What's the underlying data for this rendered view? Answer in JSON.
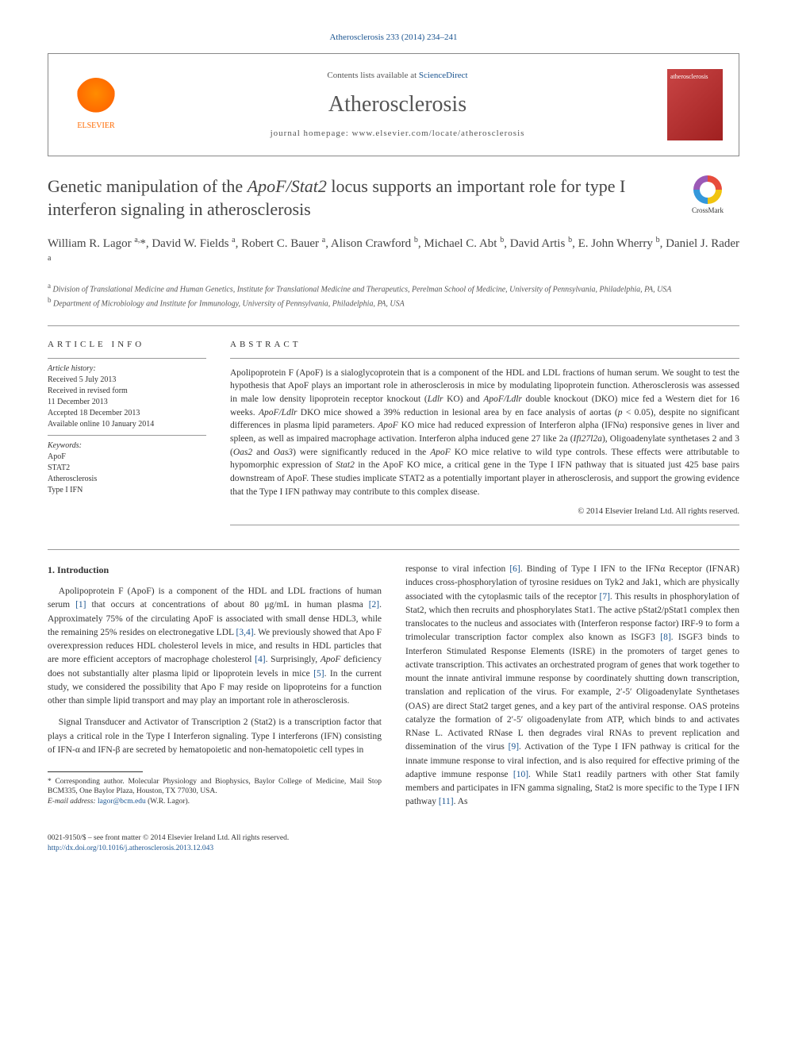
{
  "journal_ref": {
    "name": "Atherosclerosis",
    "vol": "233 (2014) 234–241"
  },
  "header": {
    "contents_prefix": "Contents lists available at ",
    "contents_link": "ScienceDirect",
    "journal": "Atherosclerosis",
    "homepage_prefix": "journal homepage: ",
    "homepage_url": "www.elsevier.com/locate/atherosclerosis",
    "publisher": "ELSEVIER",
    "cover_text": "atherosclerosis"
  },
  "crossmark": "CrossMark",
  "title": "Genetic manipulation of the <em>ApoF/Stat2</em> locus supports an important role for type I interferon signaling in atherosclerosis",
  "authors_html": "William R. Lagor <sup>a,</sup>*, David W. Fields <sup>a</sup>, Robert C. Bauer <sup>a</sup>, Alison Crawford <sup>b</sup>, Michael C. Abt <sup>b</sup>, David Artis <sup>b</sup>, E. John Wherry <sup>b</sup>, Daniel J. Rader <sup>a</sup>",
  "affiliations": [
    {
      "key": "a",
      "text": "Division of Translational Medicine and Human Genetics, Institute for Translational Medicine and Therapeutics, Perelman School of Medicine, University of Pennsylvania, Philadelphia, PA, USA"
    },
    {
      "key": "b",
      "text": "Department of Microbiology and Institute for Immunology, University of Pennsylvania, Philadelphia, PA, USA"
    }
  ],
  "info": {
    "heading": "ARTICLE INFO",
    "history_label": "Article history:",
    "history": [
      "Received 5 July 2013",
      "Received in revised form",
      "11 December 2013",
      "Accepted 18 December 2013",
      "Available online 10 January 2014"
    ],
    "keywords_label": "Keywords:",
    "keywords": [
      "ApoF",
      "STAT2",
      "Atherosclerosis",
      "Type I IFN"
    ]
  },
  "abstract": {
    "heading": "ABSTRACT",
    "text": "Apolipoprotein F (ApoF) is a sialoglycoprotein that is a component of the HDL and LDL fractions of human serum. We sought to test the hypothesis that ApoF plays an important role in atherosclerosis in mice by modulating lipoprotein function. Atherosclerosis was assessed in male low density lipoprotein receptor knockout (<em>Ldlr</em> KO) and <em>ApoF/Ldlr</em> double knockout (DKO) mice fed a Western diet for 16 weeks. <em>ApoF/Ldlr</em> DKO mice showed a 39% reduction in lesional area by en face analysis of aortas (<em>p</em> < 0.05), despite no significant differences in plasma lipid parameters. <em>ApoF</em> KO mice had reduced expression of Interferon alpha (IFNα) responsive genes in liver and spleen, as well as impaired macrophage activation. Interferon alpha induced gene 27 like 2a (<em>Ifi27l2a</em>), Oligoadenylate synthetases 2 and 3 (<em>Oas2</em> and <em>Oas3</em>) were significantly reduced in the <em>ApoF</em> KO mice relative to wild type controls. These effects were attributable to hypomorphic expression of <em>Stat2</em> in the ApoF KO mice, a critical gene in the Type I IFN pathway that is situated just 425 base pairs downstream of ApoF. These studies implicate STAT2 as a potentially important player in atherosclerosis, and support the growing evidence that the Type I IFN pathway may contribute to this complex disease.",
    "copyright": "© 2014 Elsevier Ireland Ltd. All rights reserved."
  },
  "body": {
    "section_num": "1.",
    "section_title": "Introduction",
    "p1": "Apolipoprotein F (ApoF) is a component of the HDL and LDL fractions of human serum [1] that occurs at concentrations of about 80 μg/mL in human plasma [2]. Approximately 75% of the circulating ApoF is associated with small dense HDL3, while the remaining 25% resides on electronegative LDL [3,4]. We previously showed that Apo F overexpression reduces HDL cholesterol levels in mice, and results in HDL particles that are more efficient acceptors of macrophage cholesterol [4]. Surprisingly, <em>ApoF</em> deficiency does not substantially alter plasma lipid or lipoprotein levels in mice [5]. In the current study, we considered the possibility that Apo F may reside on lipoproteins for a function other than simple lipid transport and may play an important role in atherosclerosis.",
    "p2": "Signal Transducer and Activator of Transcription 2 (Stat2) is a transcription factor that plays a critical role in the Type I Interferon signaling. Type I interferons (IFN) consisting of IFN-α and IFN-β are secreted by hematopoietic and non-hematopoietic cell types in",
    "p3": "response to viral infection [6]. Binding of Type I IFN to the IFNα Receptor (IFNAR) induces cross-phosphorylation of tyrosine residues on Tyk2 and Jak1, which are physically associated with the cytoplasmic tails of the receptor [7]. This results in phosphorylation of Stat2, which then recruits and phosphorylates Stat1. The active pStat2/pStat1 complex then translocates to the nucleus and associates with (Interferon response factor) IRF-9 to form a trimolecular transcription factor complex also known as ISGF3 [8]. ISGF3 binds to Interferon Stimulated Response Elements (ISRE) in the promoters of target genes to activate transcription. This activates an orchestrated program of genes that work together to mount the innate antiviral immune response by coordinately shutting down transcription, translation and replication of the virus. For example, 2′-5′ Oligoadenylate Synthetases (OAS) are direct Stat2 target genes, and a key part of the antiviral response. OAS proteins catalyze the formation of 2′-5′ oligoadenylate from ATP, which binds to and activates RNase L. Activated RNase L then degrades viral RNAs to prevent replication and dissemination of the virus [9]. Activation of the Type I IFN pathway is critical for the innate immune response to viral infection, and is also required for effective priming of the adaptive immune response [10]. While Stat1 readily partners with other Stat family members and participates in IFN gamma signaling, Stat2 is more specific to the Type I IFN pathway [11]. As"
  },
  "footnote": {
    "corr": "* Corresponding author. Molecular Physiology and Biophysics, Baylor College of Medicine, Mail Stop BCM335, One Baylor Plaza, Houston, TX 77030, USA.",
    "email_label": "E-mail address:",
    "email": "lagor@bcm.edu",
    "email_name": "(W.R. Lagor)."
  },
  "footer": {
    "issn": "0021-9150/$ – see front matter © 2014 Elsevier Ireland Ltd. All rights reserved.",
    "doi": "http://dx.doi.org/10.1016/j.atherosclerosis.2013.12.043"
  },
  "colors": {
    "link": "#1a5490",
    "orange": "#ff6a00"
  }
}
